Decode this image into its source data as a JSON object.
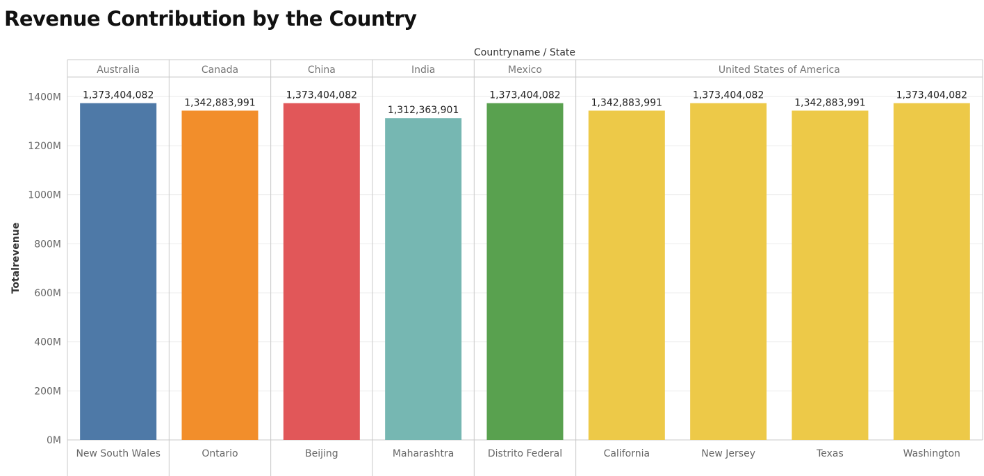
{
  "title": "Revenue Contribution by the Country",
  "chart_data": {
    "type": "bar",
    "title": "Revenue Contribution by the Country",
    "column_header": "Countryname / State",
    "ylabel": "Totalrevenue",
    "ylim": [
      0,
      1480000000
    ],
    "y_ticks": [
      0,
      200000000,
      400000000,
      600000000,
      800000000,
      1000000000,
      1200000000,
      1400000000
    ],
    "y_tick_labels": [
      "0M",
      "200M",
      "400M",
      "600M",
      "800M",
      "1000M",
      "1200M",
      "1400M"
    ],
    "groups": [
      {
        "name": "Australia",
        "color": "#4e79a7",
        "categories": [
          "New South Wales"
        ],
        "values": [
          1373404082
        ],
        "labels": [
          "1,373,404,082"
        ]
      },
      {
        "name": "Canada",
        "color": "#f28e2b",
        "categories": [
          "Ontario"
        ],
        "values": [
          1342883991
        ],
        "labels": [
          "1,342,883,991"
        ]
      },
      {
        "name": "China",
        "color": "#e15759",
        "categories": [
          "Beijing"
        ],
        "values": [
          1373404082
        ],
        "labels": [
          "1,373,404,082"
        ]
      },
      {
        "name": "India",
        "color": "#76b7b2",
        "categories": [
          "Maharashtra"
        ],
        "values": [
          1312363901
        ],
        "labels": [
          "1,312,363,901"
        ]
      },
      {
        "name": "Mexico",
        "color": "#59a14f",
        "categories": [
          "Distrito Federal"
        ],
        "values": [
          1373404082
        ],
        "labels": [
          "1,373,404,082"
        ]
      },
      {
        "name": "United States of America",
        "color": "#edc948",
        "categories": [
          "California",
          "New Jersey",
          "Texas",
          "Washington"
        ],
        "values": [
          1342883991,
          1373404082,
          1342883991,
          1373404082
        ],
        "labels": [
          "1,342,883,991",
          "1,373,404,082",
          "1,342,883,991",
          "1,373,404,082"
        ]
      }
    ],
    "grid": true,
    "legend": "none"
  }
}
